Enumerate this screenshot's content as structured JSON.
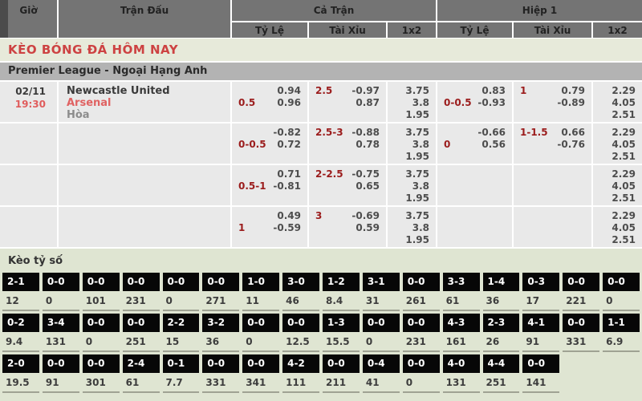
{
  "header": {
    "time_col": "Giờ",
    "match_col": "Trận Đấu",
    "full_time": "Cả Trận",
    "first_half": "Hiệp 1",
    "sub": {
      "hdp": "Tỷ Lệ",
      "ou": "Tài Xỉu",
      "oneXtwo": "1x2"
    }
  },
  "page_title": "KÈO BÓNG ĐÁ HÔM NAY",
  "league_title": "Premier League - Ngoại Hạng Anh",
  "match": {
    "date": "02/11",
    "time": "19:30",
    "home": "Newcastle United",
    "away": "Arsenal",
    "draw": "Hòa"
  },
  "odds_rows": [
    {
      "ft_hdp": [
        [
          "",
          "0.94"
        ],
        [
          "0.5",
          "0.96"
        ]
      ],
      "ft_ou": [
        [
          "2.5",
          "-0.97"
        ],
        [
          "",
          "0.87"
        ]
      ],
      "ft_1x2": [
        "3.75",
        "3.8",
        "1.95"
      ],
      "h1_hdp": [
        [
          "",
          "0.83"
        ],
        [
          "0-0.5",
          "-0.93"
        ]
      ],
      "h1_ou": [
        [
          "1",
          "0.79"
        ],
        [
          "",
          "-0.89"
        ]
      ],
      "h1_1x2": [
        "2.29",
        "4.05",
        "2.51"
      ]
    },
    {
      "ft_hdp": [
        [
          "",
          "-0.82"
        ],
        [
          "0-0.5",
          "0.72"
        ]
      ],
      "ft_ou": [
        [
          "2.5-3",
          "-0.88"
        ],
        [
          "",
          "0.78"
        ]
      ],
      "ft_1x2": [
        "3.75",
        "3.8",
        "1.95"
      ],
      "h1_hdp": [
        [
          "",
          "-0.66"
        ],
        [
          "0",
          "0.56"
        ]
      ],
      "h1_ou": [
        [
          "1-1.5",
          "0.66"
        ],
        [
          "",
          "-0.76"
        ]
      ],
      "h1_1x2": [
        "2.29",
        "4.05",
        "2.51"
      ]
    },
    {
      "ft_hdp": [
        [
          "",
          "0.71"
        ],
        [
          "0.5-1",
          "-0.81"
        ]
      ],
      "ft_ou": [
        [
          "2-2.5",
          "-0.75"
        ],
        [
          "",
          "0.65"
        ]
      ],
      "ft_1x2": [
        "3.75",
        "3.8",
        "1.95"
      ],
      "h1_hdp": [],
      "h1_ou": [],
      "h1_1x2": [
        "2.29",
        "4.05",
        "2.51"
      ]
    },
    {
      "ft_hdp": [
        [
          "",
          "0.49"
        ],
        [
          "1",
          "-0.59"
        ]
      ],
      "ft_ou": [
        [
          "3",
          "-0.69"
        ],
        [
          "",
          "0.59"
        ]
      ],
      "ft_1x2": [
        "3.75",
        "3.8",
        "1.95"
      ],
      "h1_hdp": [],
      "h1_ou": [],
      "h1_1x2": [
        "2.29",
        "4.05",
        "2.51"
      ]
    }
  ],
  "score_section": {
    "title": "Kèo tỷ số",
    "rows": [
      [
        {
          "score": "2-1",
          "odds": "12"
        },
        {
          "score": "0-0",
          "odds": "0"
        },
        {
          "score": "0-0",
          "odds": "101"
        },
        {
          "score": "0-0",
          "odds": "231"
        },
        {
          "score": "0-0",
          "odds": "0"
        },
        {
          "score": "0-0",
          "odds": "271"
        },
        {
          "score": "1-0",
          "odds": "11"
        },
        {
          "score": "3-0",
          "odds": "46"
        },
        {
          "score": "1-2",
          "odds": "8.4"
        },
        {
          "score": "3-1",
          "odds": "31"
        },
        {
          "score": "0-0",
          "odds": "261"
        },
        {
          "score": "3-3",
          "odds": "61"
        },
        {
          "score": "1-4",
          "odds": "36"
        },
        {
          "score": "0-3",
          "odds": "17"
        },
        {
          "score": "0-0",
          "odds": "221"
        },
        {
          "score": "0-0",
          "odds": "0"
        }
      ],
      [
        {
          "score": "0-2",
          "odds": "9.4"
        },
        {
          "score": "3-4",
          "odds": "131"
        },
        {
          "score": "0-0",
          "odds": "0"
        },
        {
          "score": "0-0",
          "odds": "251"
        },
        {
          "score": "2-2",
          "odds": "15"
        },
        {
          "score": "3-2",
          "odds": "36"
        },
        {
          "score": "0-0",
          "odds": "0"
        },
        {
          "score": "0-0",
          "odds": "12.5"
        },
        {
          "score": "1-3",
          "odds": "15.5"
        },
        {
          "score": "0-0",
          "odds": "0"
        },
        {
          "score": "0-0",
          "odds": "231"
        },
        {
          "score": "4-3",
          "odds": "161"
        },
        {
          "score": "2-3",
          "odds": "26"
        },
        {
          "score": "4-1",
          "odds": "91"
        },
        {
          "score": "0-0",
          "odds": "331"
        },
        {
          "score": "1-1",
          "odds": "6.9"
        }
      ],
      [
        {
          "score": "2-0",
          "odds": "19.5"
        },
        {
          "score": "0-0",
          "odds": "91"
        },
        {
          "score": "0-0",
          "odds": "301"
        },
        {
          "score": "2-4",
          "odds": "61"
        },
        {
          "score": "0-1",
          "odds": "7.7"
        },
        {
          "score": "0-0",
          "odds": "331"
        },
        {
          "score": "0-0",
          "odds": "341"
        },
        {
          "score": "4-2",
          "odds": "111"
        },
        {
          "score": "0-0",
          "odds": "211"
        },
        {
          "score": "0-4",
          "odds": "41"
        },
        {
          "score": "0-0",
          "odds": "0"
        },
        {
          "score": "4-0",
          "odds": "131"
        },
        {
          "score": "4-4",
          "odds": "251"
        },
        {
          "score": "0-0",
          "odds": "141"
        },
        null,
        null
      ]
    ]
  },
  "colors": {
    "header_bg": "#747474",
    "accent_red": "#cd4242",
    "handicap_red": "#9b1c1c",
    "section_green": "#e7eada",
    "score_bg": "#dfe5d2",
    "score_cell_black": "#070707",
    "league_bar_gray": "#b3b3b3",
    "row_gray": "#e9e9e9"
  }
}
